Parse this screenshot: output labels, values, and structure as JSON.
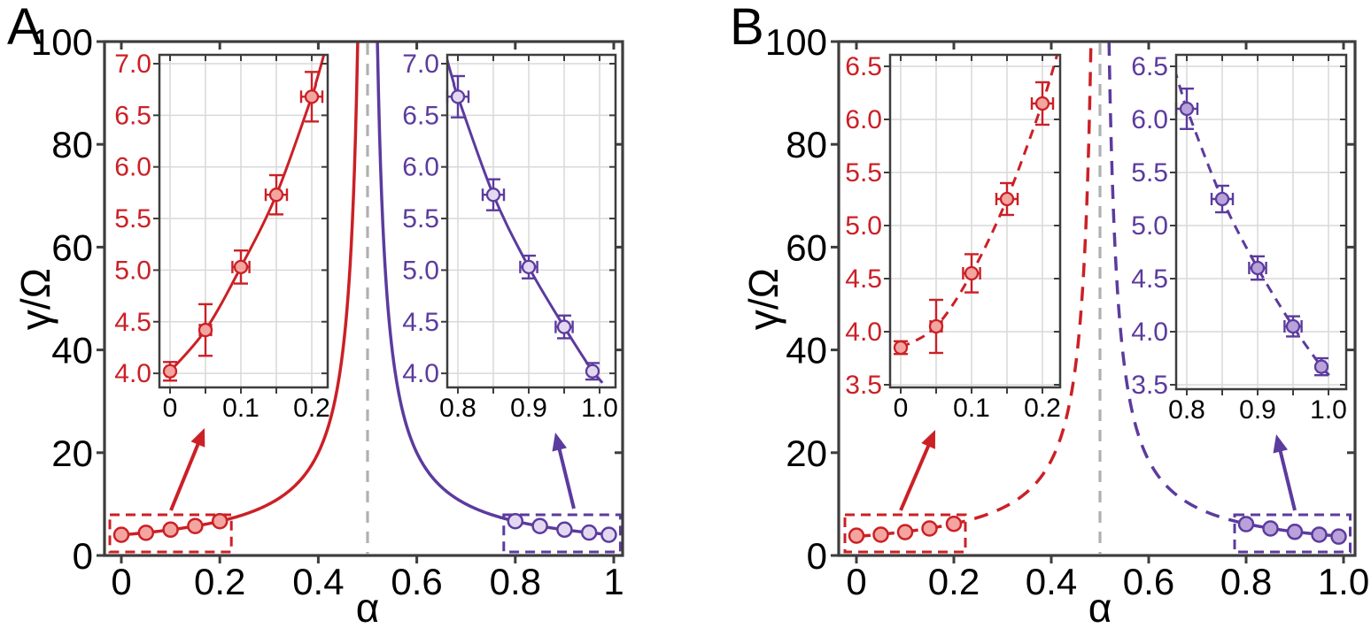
{
  "figure": {
    "background": "#ffffff",
    "panel_labels": [
      "A",
      "B"
    ]
  },
  "colors": {
    "red": "#cb2026",
    "red_marker_fill": "#f3a59f",
    "purple": "#5c3b9e",
    "purple_marker_fill_open": "#e2d9f1",
    "purple_marker_fill_solid": "#b9a2d9",
    "asymptote_gray": "#b0b0b0",
    "frame": "#3d3d3d",
    "grid": "#d9d9d9",
    "text": "#000000"
  },
  "chart_data": [
    {
      "panel_label": "A",
      "type": "line",
      "line_style": "solid",
      "xlabel": "α",
      "ylabel": "γ/Ω",
      "xlim": [
        -0.034,
        1.018
      ],
      "ylim": [
        0,
        100
      ],
      "xticks": [
        0,
        0.2,
        0.4,
        0.6,
        0.8,
        1
      ],
      "xtick_labels": [
        "0",
        "0.2",
        "0.4",
        "0.6",
        "0.8",
        "1"
      ],
      "yticks": [
        0,
        20,
        40,
        60,
        80,
        100
      ],
      "ytick_labels": [
        "0",
        "20",
        "40",
        "60",
        "80",
        "100"
      ],
      "asymptote_x": 0.5,
      "fit_amplitude": 4.0,
      "series": [
        {
          "name": "low-alpha-branch",
          "branch": "left",
          "color_key": "red",
          "marker_fill_key": "red_marker_fill",
          "x": [
            0,
            0.05,
            0.1,
            0.15,
            0.2
          ],
          "y": [
            4.02,
            4.42,
            5.03,
            5.73,
            6.68
          ],
          "yerr": [
            0.09,
            0.25,
            0.16,
            0.19,
            0.24
          ],
          "xerr": [
            0.005,
            0.008,
            0.012,
            0.015,
            0.015
          ]
        },
        {
          "name": "high-alpha-branch",
          "branch": "right",
          "color_key": "purple",
          "marker_fill_key": "purple_marker_fill_open",
          "x": [
            0.8,
            0.85,
            0.9,
            0.95,
            0.99
          ],
          "y": [
            6.68,
            5.73,
            5.03,
            4.45,
            4.02
          ],
          "yerr": [
            0.2,
            0.15,
            0.11,
            0.11,
            0.08
          ],
          "xerr": [
            0.015,
            0.015,
            0.012,
            0.012,
            0.005
          ]
        }
      ],
      "insets": [
        {
          "name": "inset-low-alpha",
          "series_index": 0,
          "xlim": [
            -0.015,
            0.2225
          ],
          "ylim": [
            3.87,
            7.09
          ],
          "xticks": [
            0,
            0.1,
            0.2
          ],
          "xtick_labels": [
            "0",
            "0.1",
            "0.2"
          ],
          "xminor": [
            0.05,
            0.15
          ],
          "yticks": [
            4.0,
            4.5,
            5.0,
            5.5,
            6.0,
            6.5,
            7.0
          ],
          "ytick_labels": [
            "4.0",
            "4.5",
            "5.0",
            "5.5",
            "6.0",
            "6.5",
            "7.0"
          ]
        },
        {
          "name": "inset-high-alpha",
          "series_index": 1,
          "xlim": [
            0.785,
            1.0225
          ],
          "ylim": [
            3.87,
            7.09
          ],
          "xticks": [
            0.8,
            0.9,
            1.0
          ],
          "xtick_labels": [
            "0.8",
            "0.9",
            "1.0"
          ],
          "xminor": [
            0.85,
            0.95
          ],
          "yticks": [
            4.0,
            4.5,
            5.0,
            5.5,
            6.0,
            6.5,
            7.0
          ],
          "ytick_labels": [
            "4.0",
            "4.5",
            "5.0",
            "5.5",
            "6.0",
            "6.5",
            "7.0"
          ]
        }
      ]
    },
    {
      "panel_label": "B",
      "type": "line",
      "line_style": "dashed",
      "xlabel": "α",
      "ylabel": "γ/Ω",
      "xlim": [
        -0.036,
        1.024
      ],
      "ylim": [
        0,
        100
      ],
      "xticks": [
        0,
        0.2,
        0.4,
        0.6,
        0.8,
        1
      ],
      "xtick_labels": [
        "0",
        "0.2",
        "0.4",
        "0.6",
        "0.8",
        "1.0"
      ],
      "yticks": [
        0,
        20,
        40,
        60,
        80,
        100
      ],
      "ytick_labels": [
        "0",
        "20",
        "40",
        "60",
        "80",
        "100"
      ],
      "asymptote_x": 0.5,
      "fit_amplitude": 3.7,
      "series": [
        {
          "name": "low-alpha-branch",
          "branch": "left",
          "color_key": "red",
          "marker_fill_key": "red_marker_fill",
          "x": [
            0,
            0.05,
            0.1,
            0.15,
            0.2
          ],
          "y": [
            3.85,
            4.05,
            4.55,
            5.25,
            6.15
          ],
          "yerr": [
            0.06,
            0.25,
            0.18,
            0.15,
            0.2
          ],
          "xerr": [
            0.005,
            0.008,
            0.012,
            0.015,
            0.015
          ]
        },
        {
          "name": "high-alpha-branch",
          "branch": "right",
          "color_key": "purple",
          "marker_fill_key": "purple_marker_fill_solid",
          "x": [
            0.8,
            0.85,
            0.9,
            0.95,
            0.99
          ],
          "y": [
            6.1,
            5.25,
            4.6,
            4.05,
            3.67
          ],
          "yerr": [
            0.19,
            0.125,
            0.11,
            0.095,
            0.08
          ],
          "xerr": [
            0.015,
            0.015,
            0.012,
            0.012,
            0.005
          ]
        }
      ],
      "insets": [
        {
          "name": "inset-low-alpha",
          "series_index": 0,
          "xlim": [
            -0.015,
            0.2225
          ],
          "ylim": [
            3.47,
            6.61
          ],
          "xticks": [
            0,
            0.1,
            0.2
          ],
          "xtick_labels": [
            "0",
            "0.1",
            "0.2"
          ],
          "xminor": [
            0.05,
            0.15
          ],
          "yticks": [
            3.5,
            4.0,
            4.5,
            5.0,
            5.5,
            6.0,
            6.5
          ],
          "ytick_labels": [
            "3.5",
            "4.0",
            "4.5",
            "5.0",
            "5.5",
            "6.0",
            "6.5"
          ]
        },
        {
          "name": "inset-high-alpha",
          "series_index": 1,
          "xlim": [
            0.785,
            1.025
          ],
          "ylim": [
            3.46,
            6.61
          ],
          "xticks": [
            0.8,
            0.9,
            1.0
          ],
          "xtick_labels": [
            "0.8",
            "0.9",
            "1.0"
          ],
          "xminor": [
            0.85,
            0.95
          ],
          "yticks": [
            3.5,
            4.0,
            4.5,
            5.0,
            5.5,
            6.0,
            6.5
          ],
          "ytick_labels": [
            "3.5",
            "4.0",
            "4.5",
            "5.0",
            "5.5",
            "6.0",
            "6.5"
          ]
        }
      ]
    }
  ]
}
